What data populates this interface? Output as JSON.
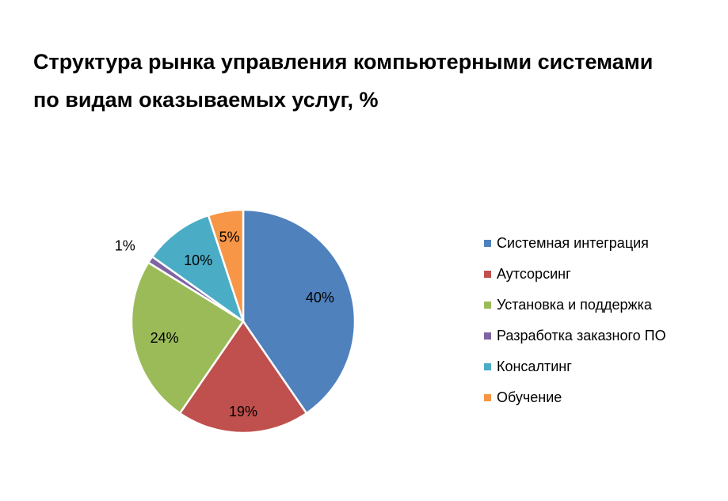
{
  "chart_data": {
    "type": "pie",
    "title": "Структура рынка управления компьютерными системами по видам оказываемых услуг, %",
    "categories": [
      "Системная интеграция",
      "Аутсорсинг",
      "Установка и поддержка",
      "Разработка заказного ПО",
      "Консалтинг",
      "Обучение"
    ],
    "values": [
      40,
      19,
      24,
      1,
      10,
      5
    ],
    "data_labels": [
      "40%",
      "19%",
      "24%",
      "1%",
      "10%",
      "5%"
    ],
    "colors": [
      "#4F81BD",
      "#C0504D",
      "#9BBB59",
      "#8064A2",
      "#4BACC6",
      "#F79646"
    ],
    "legend_position": "right"
  }
}
